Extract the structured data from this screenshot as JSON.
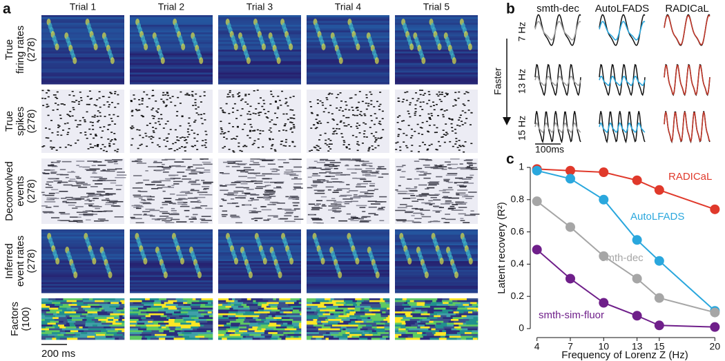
{
  "panel_a": {
    "label": "a",
    "columns": [
      "Trial 1",
      "Trial 2",
      "Trial 3",
      "Trial 4",
      "Trial 5"
    ],
    "rows": [
      [
        "True",
        "firing rates",
        "(278)"
      ],
      [
        "True",
        "spikes",
        "(278)"
      ],
      [
        "Deconvolved",
        "events",
        "(278)"
      ],
      [
        "Inferred",
        "event rates",
        "(278)"
      ],
      [
        "Factors",
        "(100)"
      ]
    ],
    "scale_bar": "200 ms"
  },
  "panel_b": {
    "label": "b",
    "columns": [
      "smth-dec",
      "AutoLFADS",
      "RADICaL"
    ],
    "rows": [
      "7 Hz",
      "13 Hz",
      "15 Hz"
    ],
    "arrow": "Faster",
    "scale_bar": "100ms"
  },
  "panel_c": {
    "label": "c"
  },
  "chart_data": {
    "type": "line",
    "x_label": "Frequency of Lorenz Z (Hz)",
    "y_label": "Latent recovery (R²)",
    "x": [
      4,
      7,
      10,
      13,
      15,
      20
    ],
    "xlim": [
      3.4,
      20.6
    ],
    "xticks": [
      4,
      7,
      10,
      13,
      15,
      20
    ],
    "ylim": [
      -0.03,
      1.03
    ],
    "yticks": [
      0,
      0.2,
      0.4,
      0.6,
      0.8,
      1
    ],
    "series": [
      {
        "name": "RADICaL",
        "color": "#e0392b",
        "values": [
          0.99,
          0.98,
          0.97,
          0.92,
          0.86,
          0.74
        ]
      },
      {
        "name": "AutoLFADS",
        "color": "#2aa7dd",
        "values": [
          0.98,
          0.93,
          0.8,
          0.55,
          0.42,
          0.11
        ]
      },
      {
        "name": "smth-dec",
        "color": "#a6a6a6",
        "values": [
          0.79,
          0.63,
          0.45,
          0.31,
          0.19,
          0.1
        ]
      },
      {
        "name": "smth-sim-fluor",
        "color": "#6f1f8a",
        "values": [
          0.49,
          0.31,
          0.16,
          0.08,
          0.02,
          0.01
        ]
      }
    ]
  }
}
